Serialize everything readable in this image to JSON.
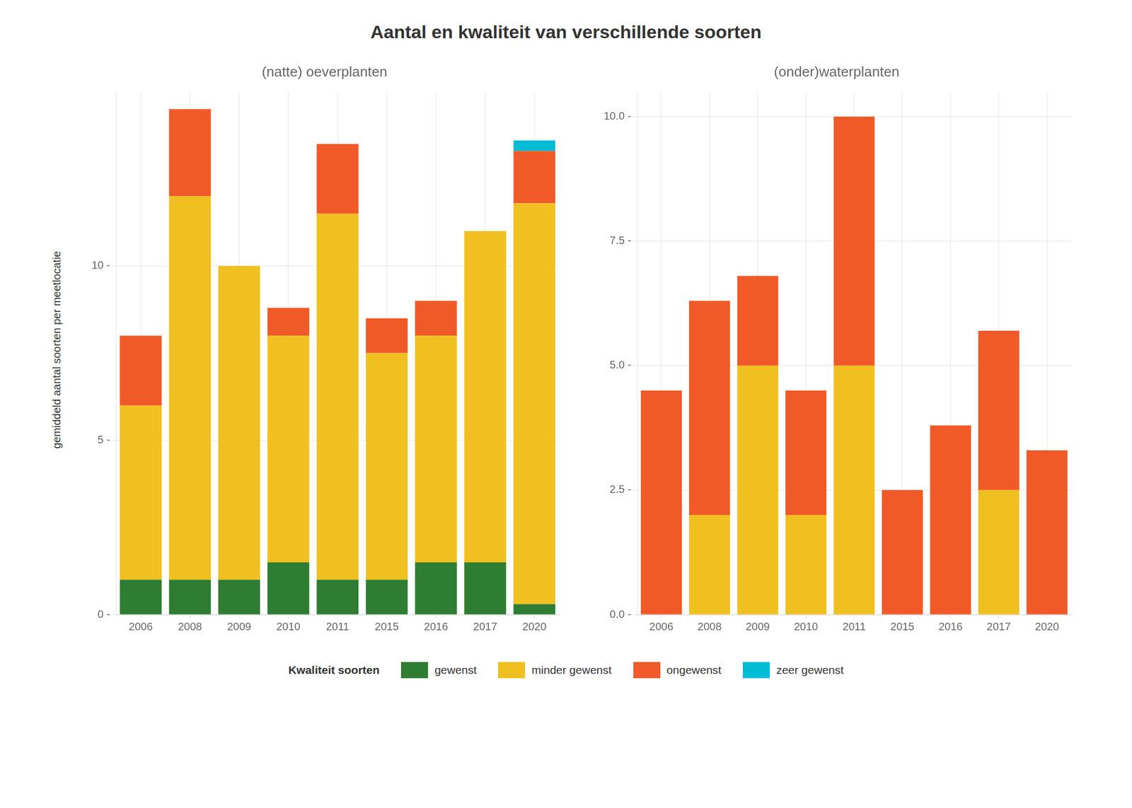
{
  "title": "Aantal en kwaliteit van verschillende soorten",
  "ylabel": "gemiddeld aantal soorten per meetlocatie",
  "legend_title": "Kwaliteit soorten",
  "legend": "bottom",
  "chart_data": [
    {
      "type": "bar",
      "subtitle": "(natte) oeverplanten",
      "stacked": true,
      "grid": true,
      "categories": [
        "2006",
        "2008",
        "2009",
        "2010",
        "2011",
        "2015",
        "2016",
        "2017",
        "2020"
      ],
      "series": [
        {
          "name": "gewenst",
          "color": "#2E7D32",
          "values": [
            1.0,
            1.0,
            1.0,
            1.5,
            1.0,
            1.0,
            1.5,
            1.5,
            0.3
          ]
        },
        {
          "name": "minder gewenst",
          "color": "#F0C020",
          "values": [
            5.0,
            11.0,
            9.0,
            6.5,
            10.5,
            6.5,
            6.5,
            9.5,
            11.5
          ]
        },
        {
          "name": "ongewenst",
          "color": "#F05A28",
          "values": [
            2.0,
            2.5,
            0.0,
            0.8,
            2.0,
            1.0,
            1.0,
            0.0,
            1.5
          ]
        },
        {
          "name": "zeer gewenst",
          "color": "#00BCD4",
          "values": [
            0.0,
            0.0,
            0.0,
            0.0,
            0.0,
            0.0,
            0.0,
            0.0,
            0.3
          ]
        }
      ],
      "ylim": [
        0,
        15
      ],
      "yticks": [
        {
          "value": 0,
          "label": "0 -"
        },
        {
          "value": 5,
          "label": "5 -"
        },
        {
          "value": 10,
          "label": "10 -"
        }
      ]
    },
    {
      "type": "bar",
      "subtitle": "(onder)waterplanten",
      "stacked": true,
      "grid": true,
      "categories": [
        "2006",
        "2008",
        "2009",
        "2010",
        "2011",
        "2015",
        "2016",
        "2017",
        "2020"
      ],
      "series": [
        {
          "name": "minder gewenst",
          "color": "#F0C020",
          "values": [
            0.0,
            2.0,
            5.0,
            2.0,
            5.0,
            0.0,
            0.0,
            2.5,
            0.0
          ]
        },
        {
          "name": "ongewenst",
          "color": "#F05A28",
          "values": [
            4.5,
            4.3,
            1.8,
            2.5,
            5.0,
            2.5,
            3.8,
            3.2,
            3.3
          ]
        }
      ],
      "ylim": [
        0,
        10.5
      ],
      "yticks": [
        {
          "value": 0.0,
          "label": "0.0 -"
        },
        {
          "value": 2.5,
          "label": "2.5 -"
        },
        {
          "value": 5.0,
          "label": "5.0 -"
        },
        {
          "value": 7.5,
          "label": "7.5 -"
        },
        {
          "value": 10.0,
          "label": "10.0 -"
        }
      ]
    }
  ]
}
